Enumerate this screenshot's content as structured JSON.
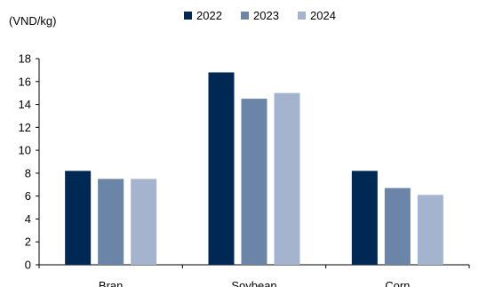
{
  "chart_data": {
    "type": "bar",
    "unit_label": "(VND/kg)",
    "categories": [
      "Bran",
      "Soybean",
      "Corn"
    ],
    "series": [
      {
        "name": "2022",
        "color": "#002855",
        "values": [
          8.2,
          16.8,
          8.2
        ]
      },
      {
        "name": "2023",
        "color": "#6a85a8",
        "values": [
          7.5,
          14.5,
          6.7
        ]
      },
      {
        "name": "2024",
        "color": "#a4b4cf",
        "values": [
          7.5,
          15.0,
          6.1
        ]
      }
    ],
    "ylim": [
      0,
      18
    ],
    "yticks": [
      "0",
      "2",
      "4",
      "6",
      "8",
      "10",
      "12",
      "14",
      "16",
      "18"
    ],
    "grid": false,
    "legend_position": "top-center"
  }
}
